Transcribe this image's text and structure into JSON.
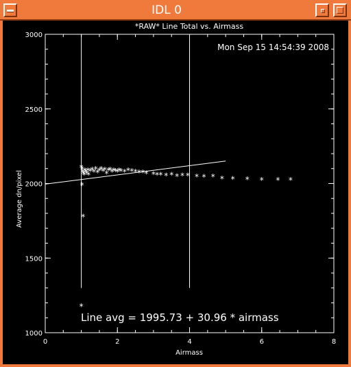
{
  "window": {
    "title": "IDL 0"
  },
  "chart_data": {
    "type": "scatter",
    "title": "*RAW* Line Total vs. Airmass",
    "timestamp": "Mon Sep 15 14:54:39 2008",
    "xlabel": "Airmass",
    "ylabel": "Average dn/pixel",
    "xlim": [
      0,
      8
    ],
    "ylim": [
      1000,
      3000
    ],
    "x_ticks": [
      "0",
      "2",
      "4",
      "6",
      "8"
    ],
    "y_ticks": [
      "1000",
      "1500",
      "2000",
      "2500",
      "3000"
    ],
    "grid": false,
    "vertical_lines": [
      1.0,
      4.0
    ],
    "fit_label": "Line avg = 1995.73 + 30.96 * airmass",
    "fit": {
      "intercept": 1995.73,
      "slope": 30.96,
      "x_range": [
        0,
        5
      ]
    },
    "points": [
      [
        1.0,
        1180
      ],
      [
        1.05,
        1780
      ],
      [
        1.02,
        1990
      ],
      [
        1.0,
        2110
      ],
      [
        1.02,
        2100
      ],
      [
        1.04,
        2080
      ],
      [
        1.06,
        2070
      ],
      [
        1.08,
        2060
      ],
      [
        1.1,
        2090
      ],
      [
        1.12,
        2080
      ],
      [
        1.15,
        2070
      ],
      [
        1.18,
        2090
      ],
      [
        1.2,
        2060
      ],
      [
        1.25,
        2085
      ],
      [
        1.3,
        2095
      ],
      [
        1.35,
        2080
      ],
      [
        1.4,
        2100
      ],
      [
        1.45,
        2075
      ],
      [
        1.5,
        2090
      ],
      [
        1.55,
        2100
      ],
      [
        1.6,
        2085
      ],
      [
        1.65,
        2095
      ],
      [
        1.7,
        2070
      ],
      [
        1.75,
        2090
      ],
      [
        1.8,
        2095
      ],
      [
        1.85,
        2080
      ],
      [
        1.9,
        2090
      ],
      [
        1.95,
        2085
      ],
      [
        2.0,
        2080
      ],
      [
        2.05,
        2090
      ],
      [
        2.1,
        2085
      ],
      [
        2.2,
        2080
      ],
      [
        2.3,
        2090
      ],
      [
        2.4,
        2085
      ],
      [
        2.5,
        2080
      ],
      [
        2.6,
        2075
      ],
      [
        2.7,
        2075
      ],
      [
        2.8,
        2070
      ],
      [
        3.0,
        2065
      ],
      [
        3.1,
        2060
      ],
      [
        3.2,
        2060
      ],
      [
        3.35,
        2055
      ],
      [
        3.5,
        2060
      ],
      [
        3.65,
        2050
      ],
      [
        3.8,
        2055
      ],
      [
        3.95,
        2055
      ],
      [
        4.2,
        2048
      ],
      [
        4.4,
        2045
      ],
      [
        4.65,
        2048
      ],
      [
        4.9,
        2035
      ],
      [
        5.2,
        2032
      ],
      [
        5.6,
        2030
      ],
      [
        6.0,
        2025
      ],
      [
        6.45,
        2025
      ],
      [
        6.8,
        2025
      ]
    ]
  }
}
